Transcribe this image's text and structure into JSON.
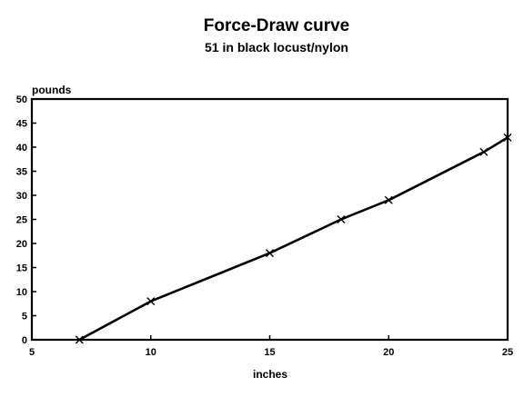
{
  "chart_data": {
    "type": "line",
    "title": "Force-Draw curve",
    "subtitle": "51 in black locust/nylon",
    "xlabel": "inches",
    "ylabel": "pounds",
    "xlim": [
      5,
      25
    ],
    "ylim": [
      0,
      50
    ],
    "x_ticks": [
      5,
      10,
      15,
      20,
      25
    ],
    "y_ticks": [
      0,
      5,
      10,
      15,
      20,
      25,
      30,
      35,
      40,
      45,
      50
    ],
    "grid": false,
    "legend": "none",
    "marker": "x",
    "line_color": "#000000",
    "series": [
      {
        "x": [
          7,
          10,
          15,
          18,
          20,
          24,
          25
        ],
        "y": [
          0,
          8,
          18,
          25,
          29,
          39,
          42
        ]
      }
    ]
  }
}
